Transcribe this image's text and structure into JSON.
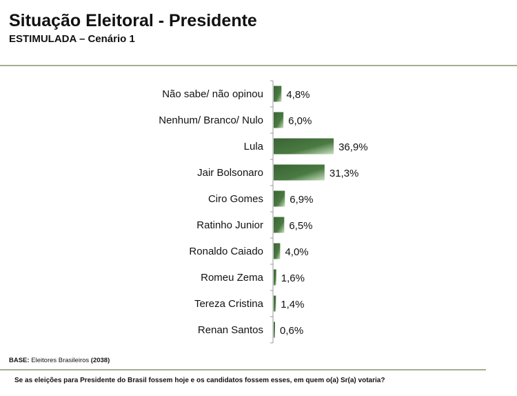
{
  "header": {
    "title": "Situação Eleitoral - Presidente",
    "subtitle": "ESTIMULADA – Cenário 1"
  },
  "footer": {
    "base_label": "BASE:",
    "base_text": "Eleitores Brasileiros",
    "base_count": "(2038)",
    "question": "Se as eleições para Presidente do Brasil fossem hoje e os candidatos fossem esses, em quem o(a) Sr(a) votaria?"
  },
  "chart_data": {
    "type": "bar",
    "orientation": "horizontal",
    "categories": [
      "Não sabe/ não opinou",
      "Nenhum/ Branco/ Nulo",
      "Lula",
      "Jair Bolsonaro",
      "Ciro Gomes",
      "Ratinho Junior",
      "Ronaldo Caiado",
      "Romeu Zema",
      "Tereza Cristina",
      "Renan Santos"
    ],
    "values": [
      4.8,
      6.0,
      36.9,
      31.3,
      6.9,
      6.5,
      4.0,
      1.6,
      1.4,
      0.6
    ],
    "labels": [
      "4,8%",
      "6,0%",
      "36,9%",
      "31,3%",
      "6,9%",
      "6,5%",
      "4,0%",
      "1,6%",
      "1,4%",
      "0,6%"
    ],
    "bar_color": "#3f6a38",
    "xlim": [
      0,
      40
    ],
    "grid": false,
    "legend": "none"
  }
}
